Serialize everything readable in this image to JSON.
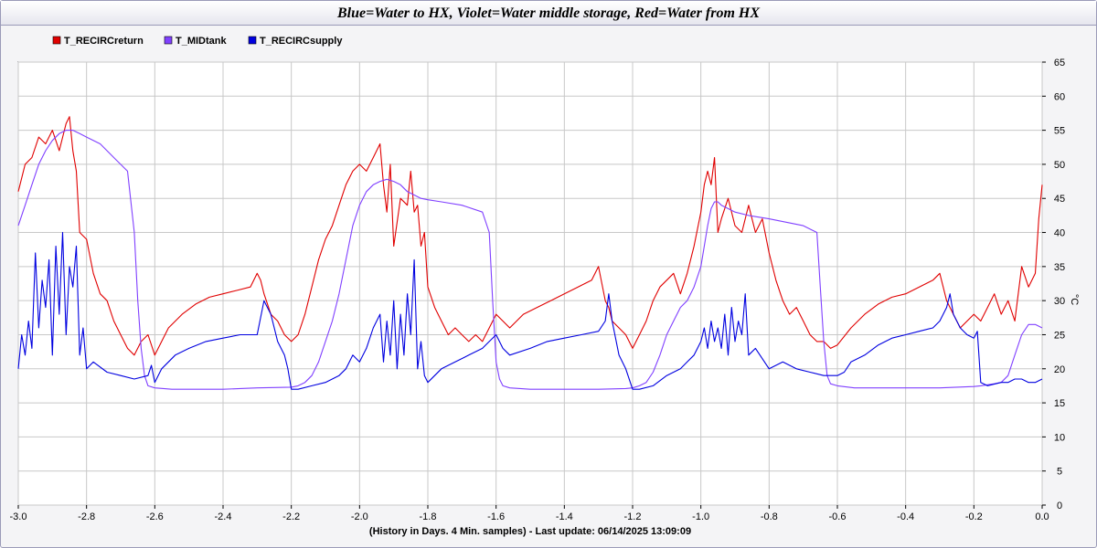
{
  "title": "Blue=Water to HX, Violet=Water middle storage, Red=Water from HX",
  "chart_data": {
    "type": "line",
    "title": "Blue=Water to HX, Violet=Water middle storage, Red=Water from HX",
    "xlabel": "(History in Days. 4 Min. samples) - Last update: 06/14/2025 13:09:09",
    "ylabel": "°C",
    "xlim": [
      -3.0,
      0.0
    ],
    "ylim": [
      0,
      65
    ],
    "xticks": [
      "-3.0",
      "-2.8",
      "-2.6",
      "-2.4",
      "-2.2",
      "-2.0",
      "-1.8",
      "-1.6",
      "-1.4",
      "-1.2",
      "-1.0",
      "-0.8",
      "-0.6",
      "-0.4",
      "-0.2",
      "0.0"
    ],
    "yticks": [
      "0",
      "5",
      "10",
      "15",
      "20",
      "25",
      "30",
      "35",
      "40",
      "45",
      "50",
      "55",
      "60",
      "65"
    ],
    "grid": true,
    "legend_position": "top-left",
    "series": [
      {
        "name": "T_RECIRCreturn",
        "color": "#e00000",
        "x": [
          -3.0,
          -2.98,
          -2.96,
          -2.94,
          -2.92,
          -2.9,
          -2.88,
          -2.86,
          -2.85,
          -2.84,
          -2.83,
          -2.82,
          -2.8,
          -2.78,
          -2.76,
          -2.74,
          -2.72,
          -2.7,
          -2.68,
          -2.66,
          -2.64,
          -2.62,
          -2.6,
          -2.58,
          -2.56,
          -2.52,
          -2.48,
          -2.44,
          -2.4,
          -2.36,
          -2.32,
          -2.3,
          -2.29,
          -2.28,
          -2.26,
          -2.24,
          -2.22,
          -2.2,
          -2.18,
          -2.16,
          -2.14,
          -2.12,
          -2.1,
          -2.08,
          -2.06,
          -2.04,
          -2.02,
          -2.0,
          -1.98,
          -1.96,
          -1.94,
          -1.93,
          -1.92,
          -1.91,
          -1.9,
          -1.88,
          -1.86,
          -1.85,
          -1.84,
          -1.83,
          -1.82,
          -1.81,
          -1.8,
          -1.78,
          -1.76,
          -1.74,
          -1.72,
          -1.7,
          -1.68,
          -1.66,
          -1.64,
          -1.62,
          -1.6,
          -1.58,
          -1.56,
          -1.52,
          -1.48,
          -1.44,
          -1.4,
          -1.36,
          -1.32,
          -1.3,
          -1.28,
          -1.27,
          -1.26,
          -1.24,
          -1.22,
          -1.2,
          -1.18,
          -1.16,
          -1.14,
          -1.12,
          -1.1,
          -1.08,
          -1.06,
          -1.04,
          -1.02,
          -1.0,
          -0.99,
          -0.98,
          -0.97,
          -0.96,
          -0.95,
          -0.94,
          -0.92,
          -0.9,
          -0.88,
          -0.86,
          -0.84,
          -0.82,
          -0.8,
          -0.78,
          -0.76,
          -0.74,
          -0.72,
          -0.7,
          -0.68,
          -0.66,
          -0.64,
          -0.62,
          -0.6,
          -0.56,
          -0.52,
          -0.48,
          -0.44,
          -0.4,
          -0.36,
          -0.32,
          -0.3,
          -0.28,
          -0.27,
          -0.26,
          -0.24,
          -0.22,
          -0.2,
          -0.18,
          -0.16,
          -0.14,
          -0.12,
          -0.1,
          -0.08,
          -0.06,
          -0.04,
          -0.02,
          -0.01,
          0.0
        ],
        "y": [
          46,
          50,
          51,
          54,
          53,
          55,
          52,
          56,
          57,
          52,
          49,
          40,
          39,
          34,
          31,
          30,
          27,
          25,
          23,
          22,
          24,
          25,
          22,
          24,
          26,
          28,
          29.5,
          30.5,
          31,
          31.5,
          32,
          34,
          33,
          31,
          28,
          27,
          25,
          24,
          25,
          28,
          32,
          36,
          39,
          41,
          44,
          47,
          49,
          50,
          49,
          51,
          53,
          47,
          43,
          50,
          38,
          45,
          44,
          49,
          43,
          44,
          38,
          40,
          32,
          29,
          27,
          25,
          26,
          25,
          24,
          25,
          24,
          26,
          28,
          27,
          26,
          28,
          29,
          30,
          31,
          32,
          33,
          35,
          30,
          29,
          27,
          26,
          25,
          23,
          25,
          27,
          30,
          32,
          33,
          34,
          31,
          34,
          38,
          43,
          47,
          49,
          47,
          51,
          40,
          42,
          45,
          41,
          40,
          44,
          40,
          42,
          37,
          33,
          30,
          28,
          29,
          27,
          25,
          24,
          24,
          23,
          23.5,
          26,
          28,
          29.5,
          30.5,
          31,
          32,
          33,
          34,
          30,
          29,
          28,
          26,
          27,
          28,
          27,
          29,
          31,
          28,
          30,
          27,
          35,
          32,
          34,
          42,
          47
        ]
      },
      {
        "name": "T_MIDtank",
        "color": "#8040ff",
        "x": [
          -3.0,
          -2.98,
          -2.96,
          -2.94,
          -2.92,
          -2.9,
          -2.88,
          -2.86,
          -2.84,
          -2.82,
          -2.8,
          -2.76,
          -2.72,
          -2.68,
          -2.66,
          -2.65,
          -2.64,
          -2.63,
          -2.62,
          -2.6,
          -2.55,
          -2.4,
          -2.3,
          -2.2,
          -2.18,
          -2.16,
          -2.14,
          -2.12,
          -2.1,
          -2.08,
          -2.06,
          -2.04,
          -2.02,
          -2.0,
          -1.98,
          -1.96,
          -1.94,
          -1.92,
          -1.9,
          -1.88,
          -1.86,
          -1.84,
          -1.82,
          -1.8,
          -1.76,
          -1.7,
          -1.64,
          -1.62,
          -1.61,
          -1.6,
          -1.59,
          -1.58,
          -1.56,
          -1.5,
          -1.4,
          -1.3,
          -1.22,
          -1.2,
          -1.18,
          -1.16,
          -1.14,
          -1.12,
          -1.1,
          -1.08,
          -1.06,
          -1.04,
          -1.02,
          -1.0,
          -0.99,
          -0.98,
          -0.97,
          -0.96,
          -0.95,
          -0.94,
          -0.92,
          -0.9,
          -0.86,
          -0.8,
          -0.7,
          -0.66,
          -0.65,
          -0.64,
          -0.63,
          -0.62,
          -0.6,
          -0.55,
          -0.5,
          -0.4,
          -0.3,
          -0.2,
          -0.18,
          -0.14,
          -0.12,
          -0.1,
          -0.08,
          -0.06,
          -0.04,
          -0.02,
          0.0
        ],
        "y": [
          41,
          44,
          47,
          50,
          52,
          53.5,
          54.5,
          55,
          55,
          54.5,
          54,
          53,
          51,
          49,
          40,
          30,
          23,
          19,
          17.5,
          17.2,
          17,
          17,
          17.2,
          17.3,
          17.5,
          18,
          19,
          21,
          24,
          27,
          31,
          36,
          41,
          44,
          46,
          47,
          47.5,
          47.8,
          47.5,
          47,
          46,
          45.5,
          45,
          44.8,
          44.5,
          44,
          43,
          40,
          30,
          21,
          18.5,
          17.5,
          17.2,
          17,
          17,
          17,
          17.1,
          17.2,
          17.5,
          18,
          19.5,
          22,
          25,
          27,
          29,
          30,
          32,
          35,
          38,
          41,
          43.5,
          44.5,
          44.5,
          44,
          43.5,
          43,
          42.5,
          42,
          41,
          40,
          32,
          24,
          19,
          17.8,
          17.5,
          17.2,
          17.2,
          17.2,
          17.2,
          17.4,
          17.5,
          17.8,
          18,
          19,
          22,
          25,
          26.5,
          26.5,
          26
        ]
      },
      {
        "name": "T_RECIRCsupply",
        "color": "#0000e0",
        "x": [
          -3.0,
          -2.99,
          -2.98,
          -2.97,
          -2.96,
          -2.95,
          -2.94,
          -2.93,
          -2.92,
          -2.91,
          -2.9,
          -2.89,
          -2.88,
          -2.87,
          -2.86,
          -2.85,
          -2.84,
          -2.83,
          -2.82,
          -2.81,
          -2.8,
          -2.78,
          -2.74,
          -2.7,
          -2.66,
          -2.62,
          -2.61,
          -2.6,
          -2.58,
          -2.54,
          -2.5,
          -2.45,
          -2.4,
          -2.35,
          -2.3,
          -2.28,
          -2.26,
          -2.24,
          -2.22,
          -2.21,
          -2.2,
          -2.18,
          -2.14,
          -2.1,
          -2.06,
          -2.04,
          -2.02,
          -2.0,
          -1.98,
          -1.96,
          -1.94,
          -1.93,
          -1.92,
          -1.91,
          -1.9,
          -1.89,
          -1.88,
          -1.87,
          -1.86,
          -1.85,
          -1.84,
          -1.83,
          -1.82,
          -1.81,
          -1.8,
          -1.78,
          -1.76,
          -1.72,
          -1.68,
          -1.64,
          -1.62,
          -1.6,
          -1.58,
          -1.56,
          -1.5,
          -1.45,
          -1.4,
          -1.35,
          -1.3,
          -1.28,
          -1.27,
          -1.26,
          -1.24,
          -1.22,
          -1.2,
          -1.18,
          -1.14,
          -1.1,
          -1.06,
          -1.04,
          -1.02,
          -1.0,
          -0.99,
          -0.98,
          -0.97,
          -0.96,
          -0.95,
          -0.94,
          -0.93,
          -0.92,
          -0.91,
          -0.9,
          -0.89,
          -0.88,
          -0.87,
          -0.86,
          -0.84,
          -0.8,
          -0.76,
          -0.72,
          -0.68,
          -0.64,
          -0.6,
          -0.58,
          -0.56,
          -0.52,
          -0.48,
          -0.44,
          -0.4,
          -0.36,
          -0.32,
          -0.3,
          -0.28,
          -0.27,
          -0.26,
          -0.24,
          -0.22,
          -0.2,
          -0.19,
          -0.18,
          -0.16,
          -0.12,
          -0.1,
          -0.08,
          -0.06,
          -0.04,
          -0.02,
          0.0
        ],
        "y": [
          20,
          25,
          22,
          27,
          23,
          37,
          26,
          33,
          29,
          36,
          22,
          38,
          28,
          40,
          25,
          35,
          32,
          38,
          22,
          26,
          20,
          21,
          19.5,
          19,
          18.5,
          19,
          20.5,
          18,
          20,
          22,
          23,
          24,
          24.5,
          25,
          25,
          30,
          28,
          24,
          22,
          20,
          17,
          17,
          17.5,
          18,
          19,
          20,
          22,
          21,
          23,
          26,
          28,
          21,
          27,
          22,
          30,
          20,
          28,
          22,
          31,
          25,
          36,
          20,
          24,
          19,
          18,
          19,
          20,
          21,
          22,
          23,
          24,
          25,
          23,
          22,
          23,
          24,
          24.5,
          25,
          25.5,
          27,
          31,
          27,
          22,
          20,
          17,
          17,
          17.5,
          19,
          20,
          21,
          22,
          24,
          26,
          23,
          27,
          24,
          26,
          23,
          28,
          22,
          29,
          24,
          27,
          25,
          31,
          22,
          23,
          20,
          21,
          20,
          19.5,
          19,
          19,
          19.5,
          21,
          22,
          23.5,
          24.5,
          25,
          25.5,
          26,
          27,
          29,
          31,
          28,
          26,
          25,
          24.5,
          25.5,
          18,
          17.5,
          18,
          18,
          18.5,
          18.5,
          18,
          18,
          18.5
        ]
      }
    ]
  }
}
